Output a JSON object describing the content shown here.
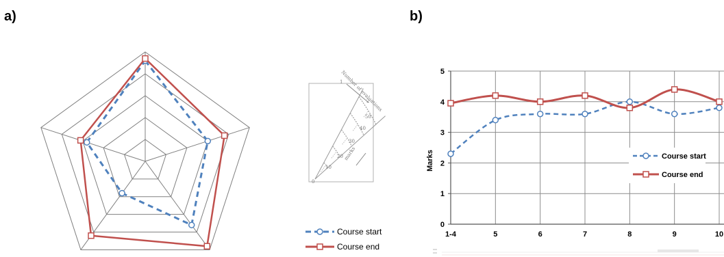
{
  "panels": {
    "a_label": "a)",
    "b_label": "b)"
  },
  "colors": {
    "course_start": "#4f81bd",
    "course_end": "#c0504d",
    "grid": "#808080"
  },
  "inset": {
    "axis_name": "Number of evaluations",
    "marks_name": "marks",
    "ticks": [
      "0",
      "10",
      "20",
      "30",
      "40",
      "50"
    ],
    "marks_ticks": [
      "1",
      "2"
    ]
  },
  "chart_data": [
    {
      "type": "radar",
      "axes_count": 5,
      "rlim": [
        0,
        5
      ],
      "rings": 5,
      "series": [
        {
          "name": "Course start",
          "values": [
            4.6,
            3.0,
            3.6,
            1.8,
            2.8
          ]
        },
        {
          "name": "Course end",
          "values": [
            4.7,
            3.8,
            4.8,
            4.2,
            3.1
          ]
        }
      ],
      "legend": "bottom-right"
    },
    {
      "type": "line",
      "categories": [
        "1-4",
        "5",
        "6",
        "7",
        "8",
        "9",
        "10"
      ],
      "ylabel": "Marks",
      "ylim": [
        0,
        5
      ],
      "yticks": [
        "0",
        "1",
        "2",
        "3",
        "4",
        "5"
      ],
      "grid": true,
      "series": [
        {
          "name": "Course start",
          "values": [
            2.3,
            3.4,
            3.6,
            3.6,
            4.0,
            3.6,
            3.8
          ]
        },
        {
          "name": "Course end",
          "values": [
            3.95,
            4.2,
            4.0,
            4.2,
            3.8,
            4.4,
            4.0
          ]
        }
      ],
      "legend": "right"
    }
  ]
}
